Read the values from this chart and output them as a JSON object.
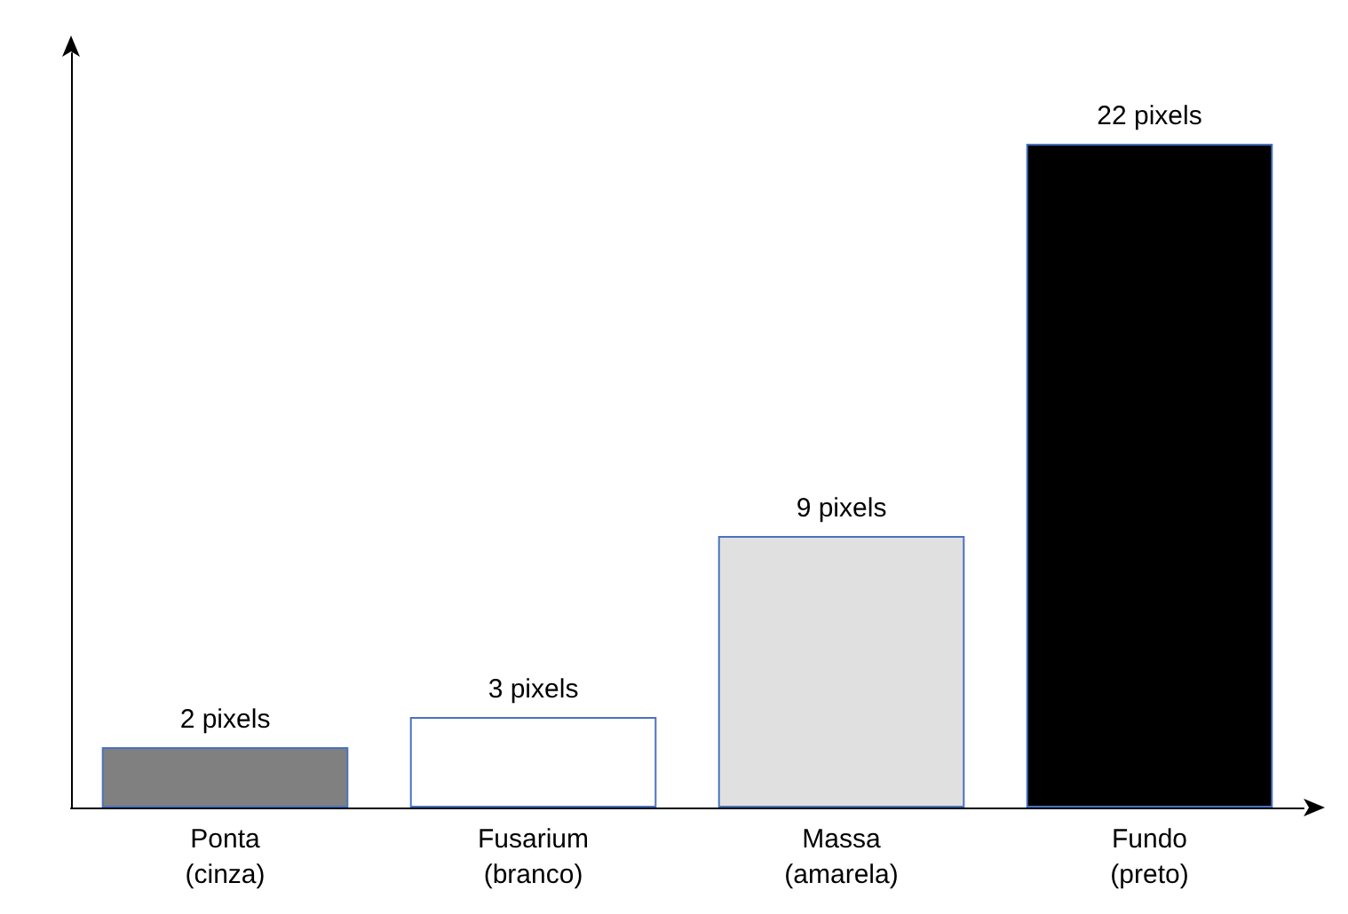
{
  "chart_data": {
    "type": "bar",
    "categories": [
      "Ponta (cinza)",
      "Fusarium (branco)",
      "Massa (amarela)",
      "Fundo (preto)"
    ],
    "values": [
      2,
      3,
      9,
      22
    ],
    "colors": [
      "#808080",
      "#ffffff",
      "#e0e0e0",
      "#000000"
    ],
    "value_labels": [
      "2 pixels",
      "3 pixels",
      "9 pixels",
      "22 pixels"
    ],
    "grid": false
  }
}
